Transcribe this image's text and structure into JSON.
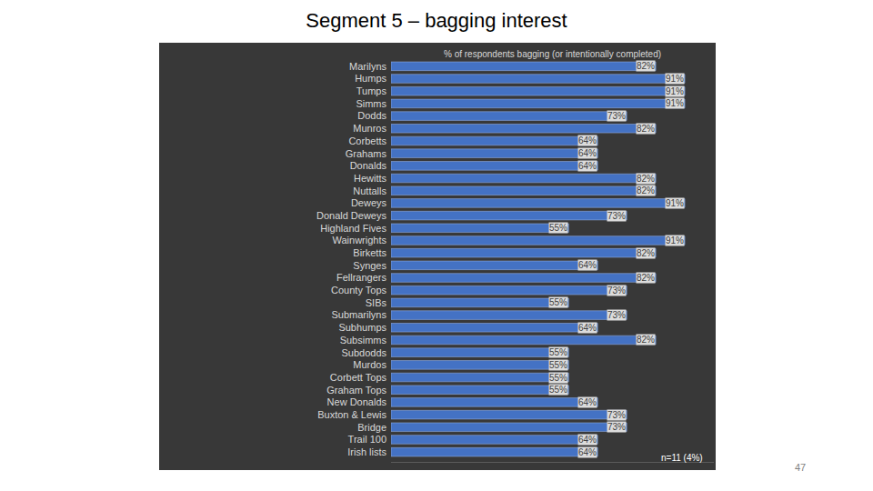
{
  "chart_data": {
    "type": "bar",
    "title": "Segment 5 – bagging interest",
    "x_label": "% of respondents bagging (or intentionally completed)",
    "orientation": "horizontal",
    "categories": [
      "Marilyns",
      "Humps",
      "Tumps",
      "Simms",
      "Dodds",
      "Munros",
      "Corbetts",
      "Grahams",
      "Donalds",
      "Hewitts",
      "Nuttalls",
      "Deweys",
      "Donald Deweys",
      "Highland Fives",
      "Wainwrights",
      "Birketts",
      "Synges",
      "Fellrangers",
      "County Tops",
      "SIBs",
      "Submarilyns",
      "Subhumps",
      "Subsimms",
      "Subdodds",
      "Murdos",
      "Corbett Tops",
      "Graham Tops",
      "New Donalds",
      "Buxton & Lewis",
      "Bridge",
      "Trail 100",
      "Irish lists"
    ],
    "values": [
      82,
      91,
      91,
      91,
      73,
      82,
      64,
      64,
      64,
      82,
      82,
      91,
      73,
      55,
      91,
      82,
      64,
      82,
      73,
      55,
      73,
      64,
      82,
      55,
      55,
      55,
      55,
      64,
      73,
      73,
      64,
      64
    ],
    "value_labels": [
      "82%",
      "91%",
      "91%",
      "91%",
      "73%",
      "82%",
      "64%",
      "64%",
      "64%",
      "82%",
      "82%",
      "91%",
      "73%",
      "55%",
      "91%",
      "82%",
      "64%",
      "82%",
      "73%",
      "55%",
      "73%",
      "64%",
      "82%",
      "55%",
      "55%",
      "55%",
      "55%",
      "64%",
      "73%",
      "73%",
      "64%",
      "64%"
    ],
    "data_labels": true,
    "color": "#4472c4",
    "xlim": [
      0,
      100
    ],
    "xticks": [
      0,
      20,
      40,
      60,
      80,
      100
    ],
    "tick_labels": "y",
    "grid": false,
    "annotations": [
      {
        "text": "n=11 (4%)"
      },
      {
        "text": "47"
      }
    ]
  }
}
